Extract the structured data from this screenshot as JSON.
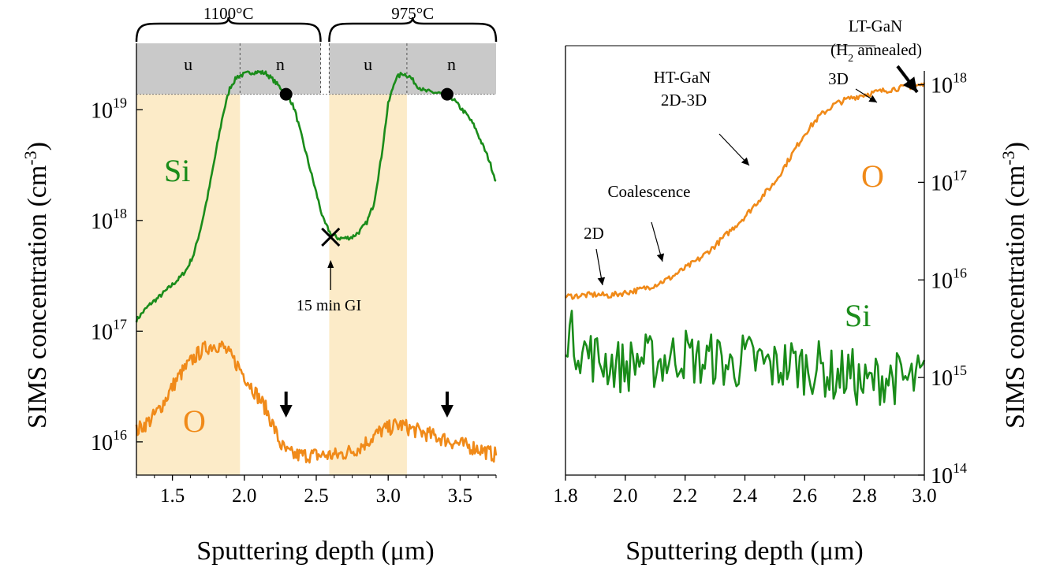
{
  "colors": {
    "si": "#1a8c1a",
    "o": "#f08a19",
    "band_fill": "#fcebc8",
    "header_fill": "#c9c9c9",
    "axis": "#000000"
  },
  "chart_data": [
    {
      "type": "line",
      "xlabel": "Sputtering depth (μm)",
      "ylabel": "SIMS concentration (cm",
      "ylabel_sup": "-3",
      "ylabel_close": ")",
      "xlim": [
        1.25,
        3.75
      ],
      "ylim_log10": [
        15.7,
        19.6
      ],
      "y_scale": "log",
      "x_ticks": [
        "1.5",
        "2.0",
        "2.5",
        "3.0",
        "3.5"
      ],
      "x_tick_values": [
        1.5,
        2.0,
        2.5,
        3.0,
        3.5
      ],
      "y_ticks": [
        {
          "base": "10",
          "exp": "16",
          "value_log10": 16
        },
        {
          "base": "10",
          "exp": "17",
          "value_log10": 17
        },
        {
          "base": "10",
          "exp": "18",
          "value_log10": 18
        },
        {
          "base": "10",
          "exp": "19",
          "value_log10": 19
        }
      ],
      "series": [
        {
          "name": "Si",
          "color": "#1a8c1a",
          "x": [
            1.25,
            1.3,
            1.35,
            1.4,
            1.45,
            1.5,
            1.55,
            1.6,
            1.65,
            1.7,
            1.75,
            1.8,
            1.85,
            1.9,
            1.95,
            2.0,
            2.05,
            2.1,
            2.15,
            2.2,
            2.25,
            2.3,
            2.35,
            2.4,
            2.45,
            2.5,
            2.55,
            2.6,
            2.65,
            2.7,
            2.75,
            2.8,
            2.85,
            2.9,
            2.95,
            3.0,
            3.05,
            3.1,
            3.15,
            3.2,
            3.25,
            3.3,
            3.35,
            3.4,
            3.45,
            3.5,
            3.55,
            3.6,
            3.65,
            3.7,
            3.75
          ],
          "y_log10": [
            17.1,
            17.18,
            17.25,
            17.3,
            17.36,
            17.42,
            17.48,
            17.56,
            17.7,
            17.95,
            18.25,
            18.6,
            18.95,
            19.2,
            19.3,
            19.32,
            19.34,
            19.34,
            19.33,
            19.27,
            19.2,
            19.15,
            19.0,
            18.75,
            18.5,
            18.25,
            18.0,
            17.88,
            17.84,
            17.84,
            17.85,
            17.9,
            17.98,
            18.15,
            18.55,
            19.05,
            19.28,
            19.33,
            19.3,
            19.22,
            19.17,
            19.16,
            19.15,
            19.14,
            19.1,
            19.02,
            18.95,
            18.85,
            18.7,
            18.55,
            18.35
          ],
          "noise": 0.02
        },
        {
          "name": "O",
          "color": "#f08a19",
          "x": [
            1.25,
            1.3,
            1.35,
            1.4,
            1.45,
            1.5,
            1.55,
            1.6,
            1.65,
            1.7,
            1.75,
            1.8,
            1.85,
            1.9,
            1.95,
            2.0,
            2.05,
            2.1,
            2.15,
            2.2,
            2.25,
            2.3,
            2.35,
            2.4,
            2.45,
            2.5,
            2.55,
            2.6,
            2.65,
            2.7,
            2.75,
            2.8,
            2.85,
            2.9,
            2.95,
            3.0,
            3.05,
            3.1,
            3.15,
            3.2,
            3.25,
            3.3,
            3.35,
            3.4,
            3.45,
            3.5,
            3.55,
            3.6,
            3.65,
            3.7,
            3.75
          ],
          "y_log10": [
            16.1,
            16.15,
            16.2,
            16.28,
            16.38,
            16.5,
            16.6,
            16.68,
            16.76,
            16.82,
            16.86,
            16.88,
            16.86,
            16.78,
            16.7,
            16.6,
            16.5,
            16.4,
            16.3,
            16.15,
            15.98,
            15.9,
            15.88,
            15.88,
            15.88,
            15.88,
            15.88,
            15.88,
            15.88,
            15.9,
            15.92,
            15.95,
            16.0,
            16.05,
            16.1,
            16.12,
            16.15,
            16.15,
            16.12,
            16.1,
            16.08,
            16.06,
            16.04,
            16.02,
            16.0,
            15.98,
            15.96,
            15.95,
            15.93,
            15.9,
            15.88
          ],
          "noise": 0.07
        }
      ],
      "series_labels": [
        "Si",
        "O"
      ],
      "markers": [
        {
          "type": "circle",
          "x": 2.29,
          "y_log10": 19.14
        },
        {
          "type": "circle",
          "x": 3.41,
          "y_log10": 19.14
        },
        {
          "type": "x",
          "x": 2.6,
          "y_log10": 17.85
        }
      ],
      "header": {
        "y_bottom_log10": 19.14,
        "segments": [
          {
            "label": "u",
            "x0": 1.25,
            "x1": 1.97
          },
          {
            "label": "n",
            "x0": 1.97,
            "x1": 2.53
          },
          {
            "label": "u",
            "x0": 2.59,
            "x1": 3.13
          },
          {
            "label": "n",
            "x0": 3.13,
            "x1": 3.75
          }
        ],
        "groups": [
          {
            "label": "1100°C",
            "x0": 1.25,
            "x1": 2.53
          },
          {
            "label": "975°C",
            "x0": 2.59,
            "x1": 3.75
          }
        ]
      },
      "bands": [
        [
          1.25,
          1.97
        ],
        [
          2.59,
          3.13
        ]
      ],
      "annotations": {
        "gi": "15 min GI",
        "gi_x": 2.6
      },
      "arrow_x": [
        2.29,
        3.41
      ]
    },
    {
      "type": "line",
      "xlabel": "Sputtering depth (μm)",
      "ylabel": "SIMS concentration (cm",
      "ylabel_sup": "-3",
      "ylabel_close": ")",
      "xlim": [
        1.8,
        3.0
      ],
      "ylim_log10": [
        14,
        18.4
      ],
      "y_scale": "log",
      "y_axis_side": "right",
      "x_ticks": [
        "1.8",
        "2.0",
        "2.2",
        "2.4",
        "2.6",
        "2.8",
        "3.0"
      ],
      "x_tick_values": [
        1.8,
        2.0,
        2.2,
        2.4,
        2.6,
        2.8,
        3.0
      ],
      "y_ticks": [
        {
          "base": "10",
          "exp": "14",
          "value_log10": 14
        },
        {
          "base": "10",
          "exp": "15",
          "value_log10": 15
        },
        {
          "base": "10",
          "exp": "16",
          "value_log10": 16
        },
        {
          "base": "10",
          "exp": "17",
          "value_log10": 17
        },
        {
          "base": "10",
          "exp": "18",
          "value_log10": 18
        }
      ],
      "series": [
        {
          "name": "O",
          "color": "#f08a19",
          "x": [
            1.8,
            1.85,
            1.9,
            1.95,
            2.0,
            2.05,
            2.1,
            2.15,
            2.2,
            2.25,
            2.3,
            2.35,
            2.4,
            2.45,
            2.5,
            2.55,
            2.6,
            2.65,
            2.7,
            2.75,
            2.8,
            2.85,
            2.9,
            2.95,
            3.0
          ],
          "y_log10": [
            15.83,
            15.84,
            15.85,
            15.84,
            15.87,
            15.9,
            15.95,
            16.02,
            16.12,
            16.22,
            16.35,
            16.5,
            16.65,
            16.83,
            17.0,
            17.25,
            17.5,
            17.68,
            17.8,
            17.86,
            17.9,
            17.93,
            17.96,
            17.98,
            18.0
          ],
          "noise": 0.03
        },
        {
          "name": "Si",
          "color": "#1a8c1a",
          "x": [
            1.8,
            1.85,
            1.9,
            1.95,
            2.0,
            2.05,
            2.1,
            2.15,
            2.2,
            2.25,
            2.3,
            2.35,
            2.4,
            2.45,
            2.5,
            2.55,
            2.6,
            2.65,
            2.7,
            2.75,
            2.8,
            2.85,
            2.9,
            2.95,
            3.0
          ],
          "y_log10": [
            15.5,
            15.3,
            15.2,
            15.15,
            15.1,
            15.2,
            15.15,
            15.2,
            15.25,
            15.15,
            15.2,
            15.1,
            15.2,
            15.15,
            15.1,
            15.15,
            15.1,
            15.1,
            15.0,
            15.05,
            14.9,
            15.0,
            15.0,
            14.95,
            15.0
          ],
          "noise": 0.28
        }
      ],
      "series_labels": [
        "O",
        "Si"
      ],
      "annotations": {
        "lt_gan_1": "LT-GaN",
        "lt_gan_2_pre": "(H",
        "lt_gan_2_sub": "2",
        "lt_gan_2_post": " annealed)",
        "three_d": "3D",
        "ht_gan_1": "HT-GaN",
        "ht_gan_2": "2D-3D",
        "coalescence": "Coalescence",
        "two_d": "2D"
      }
    }
  ]
}
